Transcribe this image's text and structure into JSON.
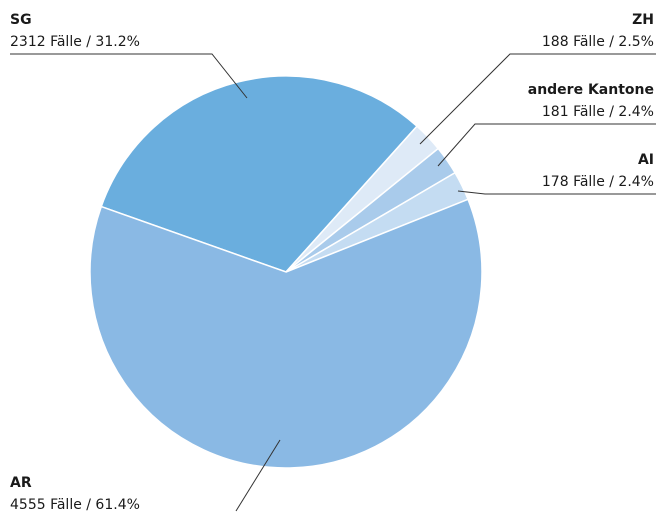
{
  "chart_data": {
    "type": "pie",
    "categories": [
      "SG",
      "ZH",
      "andere Kantone",
      "AI",
      "AR"
    ],
    "values": [
      31.2,
      2.5,
      2.4,
      2.4,
      61.4
    ],
    "value_labels": [
      "2312 Fälle / 31.2%",
      "188 Fälle / 2.5%",
      "181 Fälle / 2.4%",
      "178 Fälle / 2.4%",
      "4555 Fälle / 61.4%"
    ],
    "colors": [
      "#6aaede",
      "#deeaf7",
      "#a9cbeb",
      "#c4dcf2",
      "#8ab9e4"
    ]
  }
}
